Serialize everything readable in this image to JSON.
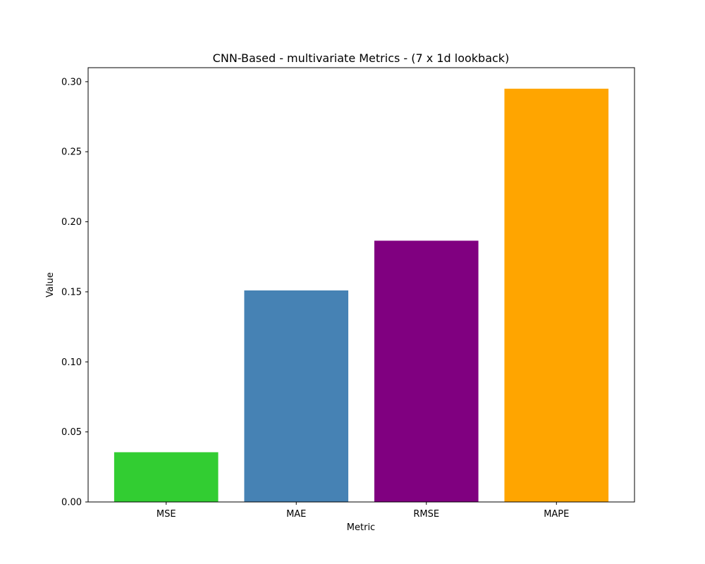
{
  "chart_data": {
    "type": "bar",
    "title": "CNN-Based - multivariate Metrics - (7 x 1d lookback)",
    "xlabel": "Metric",
    "ylabel": "Value",
    "categories": [
      "MSE",
      "MAE",
      "RMSE",
      "MAPE"
    ],
    "values": [
      0.0355,
      0.151,
      0.1865,
      0.295
    ],
    "colors": [
      "#32cd32",
      "#4682b4",
      "#800080",
      "#ffa500"
    ],
    "ylim": [
      0,
      0.31
    ],
    "yticks": [
      0.0,
      0.05,
      0.1,
      0.15,
      0.2,
      0.25,
      0.3
    ],
    "ytick_labels": [
      "0.00",
      "0.05",
      "0.10",
      "0.15",
      "0.20",
      "0.25",
      "0.30"
    ],
    "grid": false,
    "legend": "none"
  }
}
